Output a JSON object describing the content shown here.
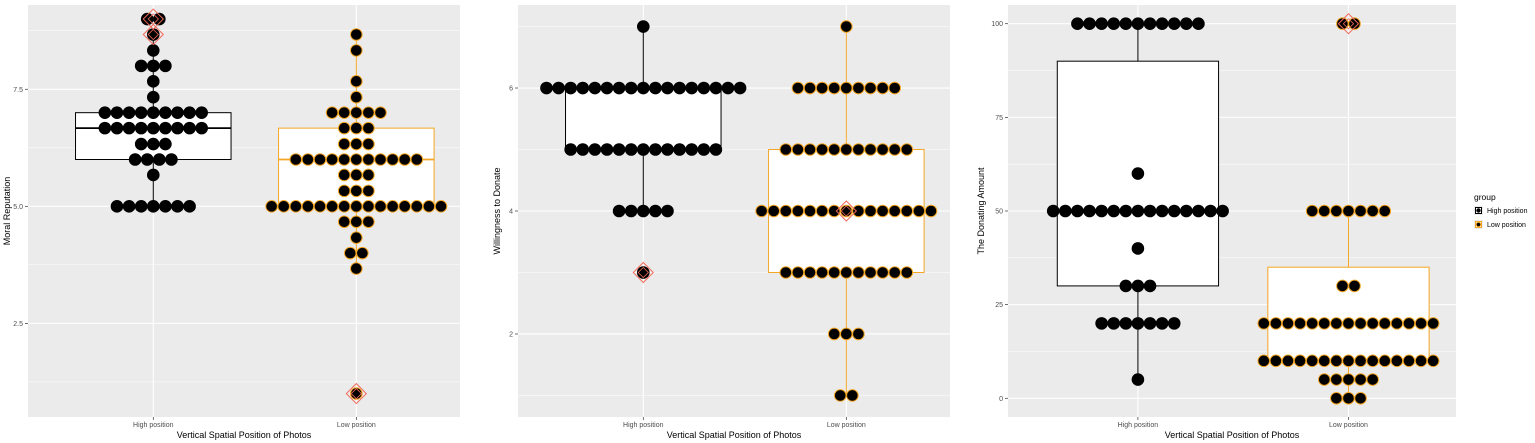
{
  "chart_data": [
    {
      "type": "boxplot",
      "xlabel": "Vertical Spatial Position of Photos",
      "ylabel": "Moral Reputation",
      "categories": [
        "High position",
        "Low position"
      ],
      "ylim": [
        0.5,
        9.3
      ],
      "yticks": [
        2.5,
        5.0,
        7.5
      ],
      "ytick_labels": [
        "2.5",
        "5.0",
        "7.5"
      ],
      "boxes": [
        {
          "group": "High position",
          "q1": 6.0,
          "median": 6.67,
          "q3": 7.0,
          "whisker_low": 5.0,
          "whisker_high": 8.67,
          "outliers": [
            9.0,
            8.67
          ]
        },
        {
          "group": "Low position",
          "q1": 5.0,
          "median": 6.0,
          "q3": 6.67,
          "whisker_low": 3.67,
          "whisker_high": 8.67,
          "outliers": [
            1.0
          ]
        }
      ],
      "points": [
        {
          "group": "High position",
          "y": 9.0,
          "n": 2
        },
        {
          "group": "High position",
          "y": 8.67,
          "n": 1
        },
        {
          "group": "High position",
          "y": 8.33,
          "n": 1
        },
        {
          "group": "High position",
          "y": 8.0,
          "n": 3
        },
        {
          "group": "High position",
          "y": 7.67,
          "n": 1
        },
        {
          "group": "High position",
          "y": 7.33,
          "n": 1
        },
        {
          "group": "High position",
          "y": 7.0,
          "n": 9
        },
        {
          "group": "High position",
          "y": 6.67,
          "n": 9
        },
        {
          "group": "High position",
          "y": 6.33,
          "n": 3
        },
        {
          "group": "High position",
          "y": 6.0,
          "n": 4
        },
        {
          "group": "High position",
          "y": 5.67,
          "n": 1
        },
        {
          "group": "High position",
          "y": 5.0,
          "n": 7
        },
        {
          "group": "Low position",
          "y": 8.67,
          "n": 1
        },
        {
          "group": "Low position",
          "y": 8.33,
          "n": 1
        },
        {
          "group": "Low position",
          "y": 7.67,
          "n": 1
        },
        {
          "group": "Low position",
          "y": 7.33,
          "n": 1
        },
        {
          "group": "Low position",
          "y": 7.0,
          "n": 5
        },
        {
          "group": "Low position",
          "y": 6.67,
          "n": 3
        },
        {
          "group": "Low position",
          "y": 6.33,
          "n": 3
        },
        {
          "group": "Low position",
          "y": 6.0,
          "n": 11
        },
        {
          "group": "Low position",
          "y": 5.67,
          "n": 3
        },
        {
          "group": "Low position",
          "y": 5.33,
          "n": 3
        },
        {
          "group": "Low position",
          "y": 5.0,
          "n": 15
        },
        {
          "group": "Low position",
          "y": 4.67,
          "n": 3
        },
        {
          "group": "Low position",
          "y": 4.33,
          "n": 1
        },
        {
          "group": "Low position",
          "y": 4.0,
          "n": 2
        },
        {
          "group": "Low position",
          "y": 3.67,
          "n": 1
        },
        {
          "group": "Low position",
          "y": 1.0,
          "n": 1
        }
      ],
      "means": [
        {
          "group": "High position",
          "y": 9.0
        },
        {
          "group": "High position",
          "y": 8.67
        },
        {
          "group": "Low position",
          "y": 1.0
        }
      ]
    },
    {
      "type": "boxplot",
      "xlabel": "Vertical Spatial Position of Photos",
      "ylabel": "Willingness to Donate",
      "categories": [
        "High position",
        "Low position"
      ],
      "ylim": [
        0.65,
        7.35
      ],
      "yticks": [
        2,
        4,
        6
      ],
      "ytick_labels": [
        "2",
        "4",
        "6"
      ],
      "boxes": [
        {
          "group": "High position",
          "q1": 5,
          "median": 6,
          "q3": 6,
          "whisker_low": 4,
          "whisker_high": 7,
          "outliers": [
            3
          ]
        },
        {
          "group": "Low position",
          "q1": 3,
          "median": 4,
          "q3": 5,
          "whisker_low": 1,
          "whisker_high": 7,
          "outliers": []
        }
      ],
      "points": [
        {
          "group": "High position",
          "y": 7,
          "n": 1
        },
        {
          "group": "High position",
          "y": 6,
          "n": 17
        },
        {
          "group": "High position",
          "y": 5,
          "n": 13
        },
        {
          "group": "High position",
          "y": 4,
          "n": 5
        },
        {
          "group": "High position",
          "y": 3,
          "n": 1
        },
        {
          "group": "Low position",
          "y": 7,
          "n": 1
        },
        {
          "group": "Low position",
          "y": 6,
          "n": 9
        },
        {
          "group": "Low position",
          "y": 5,
          "n": 11
        },
        {
          "group": "Low position",
          "y": 4,
          "n": 15
        },
        {
          "group": "Low position",
          "y": 3,
          "n": 11
        },
        {
          "group": "Low position",
          "y": 2,
          "n": 3
        },
        {
          "group": "Low position",
          "y": 1,
          "n": 2
        }
      ],
      "means": [
        {
          "group": "High position",
          "y": 3
        },
        {
          "group": "Low position",
          "y": 4
        }
      ]
    },
    {
      "type": "boxplot",
      "xlabel": "Vertical Spatial Position of Photos",
      "ylabel": "The Donating Amount",
      "categories": [
        "High position",
        "Low position"
      ],
      "ylim": [
        -5,
        105
      ],
      "yticks": [
        0,
        25,
        50,
        75,
        100
      ],
      "ytick_labels": [
        "0",
        "25",
        "50",
        "75",
        "100"
      ],
      "boxes": [
        {
          "group": "High position",
          "q1": 30,
          "median": 50,
          "q3": 90,
          "whisker_low": 5,
          "whisker_high": 100,
          "outliers": []
        },
        {
          "group": "Low position",
          "q1": 10,
          "median": 20,
          "q3": 35,
          "whisker_low": 0,
          "whisker_high": 50,
          "outliers": [
            100
          ]
        }
      ],
      "points": [
        {
          "group": "High position",
          "y": 100,
          "n": 11
        },
        {
          "group": "High position",
          "y": 60,
          "n": 1
        },
        {
          "group": "High position",
          "y": 50,
          "n": 15
        },
        {
          "group": "High position",
          "y": 40,
          "n": 1
        },
        {
          "group": "High position",
          "y": 30,
          "n": 3
        },
        {
          "group": "High position",
          "y": 20,
          "n": 7
        },
        {
          "group": "High position",
          "y": 5,
          "n": 1
        },
        {
          "group": "Low position",
          "y": 100,
          "n": 2
        },
        {
          "group": "Low position",
          "y": 50,
          "n": 7
        },
        {
          "group": "Low position",
          "y": 30,
          "n": 2
        },
        {
          "group": "Low position",
          "y": 20,
          "n": 15
        },
        {
          "group": "Low position",
          "y": 10,
          "n": 15
        },
        {
          "group": "Low position",
          "y": 5,
          "n": 5
        },
        {
          "group": "Low position",
          "y": 0,
          "n": 3
        }
      ],
      "means": [
        {
          "group": "Low position",
          "y": 100
        }
      ]
    }
  ],
  "legend": {
    "title": "group",
    "items": [
      {
        "label": "High position",
        "color": "#000000"
      },
      {
        "label": "Low position",
        "color": "#f5a623"
      }
    ]
  },
  "colors": {
    "panel_bg": "#ebebeb",
    "grid": "#ffffff",
    "high_box": "#000000",
    "low_box": "#f5a623",
    "mean_marker": "#f26b5b",
    "point_fill": "#000000"
  }
}
